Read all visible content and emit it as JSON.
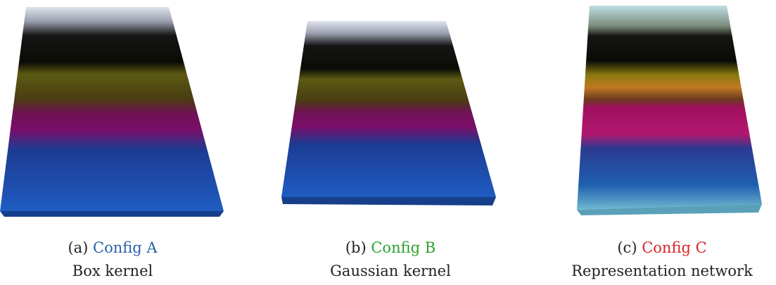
{
  "panels": [
    {
      "label": "(a)",
      "name": "Config A",
      "description": "Box kernel"
    },
    {
      "label": "(b)",
      "name": "Config B",
      "description": "Gaussian kernel"
    },
    {
      "label": "(c)",
      "name": "Config C",
      "description": "Representation network"
    }
  ]
}
